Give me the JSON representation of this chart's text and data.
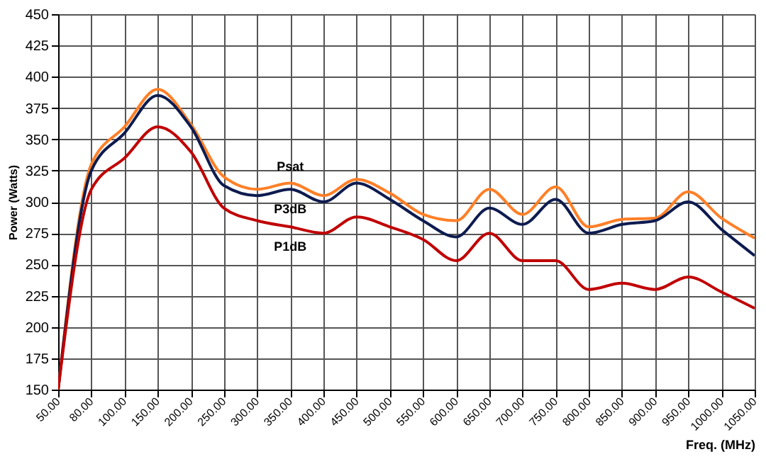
{
  "chart_data": {
    "type": "line",
    "xlabel": "Freq. (MHz)",
    "ylabel": "Power (Watts)",
    "categories": [
      "50.00",
      "80.00",
      "100.00",
      "150.00",
      "200.00",
      "250.00",
      "300.00",
      "350.00",
      "400.00",
      "450.00",
      "500.00",
      "550.00",
      "600.00",
      "650.00",
      "700.00",
      "750.00",
      "800.00",
      "850.00",
      "900.00",
      "950.00",
      "1000.00",
      "1050.00"
    ],
    "ylim": [
      150,
      450
    ],
    "yticks": [
      150,
      175,
      200,
      225,
      250,
      275,
      300,
      325,
      350,
      375,
      400,
      425,
      450
    ],
    "grid": true,
    "marker": "none",
    "line_style": "solid",
    "series": [
      {
        "name": "Psat",
        "color": "#ff7f27",
        "values": [
          150,
          330,
          360,
          390,
          362,
          320,
          310,
          315,
          305,
          318,
          307,
          290,
          285,
          310,
          290,
          312,
          280,
          286,
          287,
          308,
          287,
          271
        ]
      },
      {
        "name": "P3dB",
        "color": "#0d1b4f",
        "values": [
          150,
          325,
          355,
          385,
          360,
          313,
          305,
          310,
          300,
          315,
          302,
          285,
          272,
          295,
          282,
          302,
          275,
          282,
          285,
          300,
          278,
          257
        ]
      },
      {
        "name": "P1dB",
        "color": "#c00000",
        "values": [
          150,
          310,
          335,
          360,
          340,
          295,
          285,
          280,
          275,
          288,
          280,
          270,
          253,
          275,
          253,
          253,
          230,
          235,
          230,
          240,
          228,
          215
        ]
      }
    ]
  }
}
